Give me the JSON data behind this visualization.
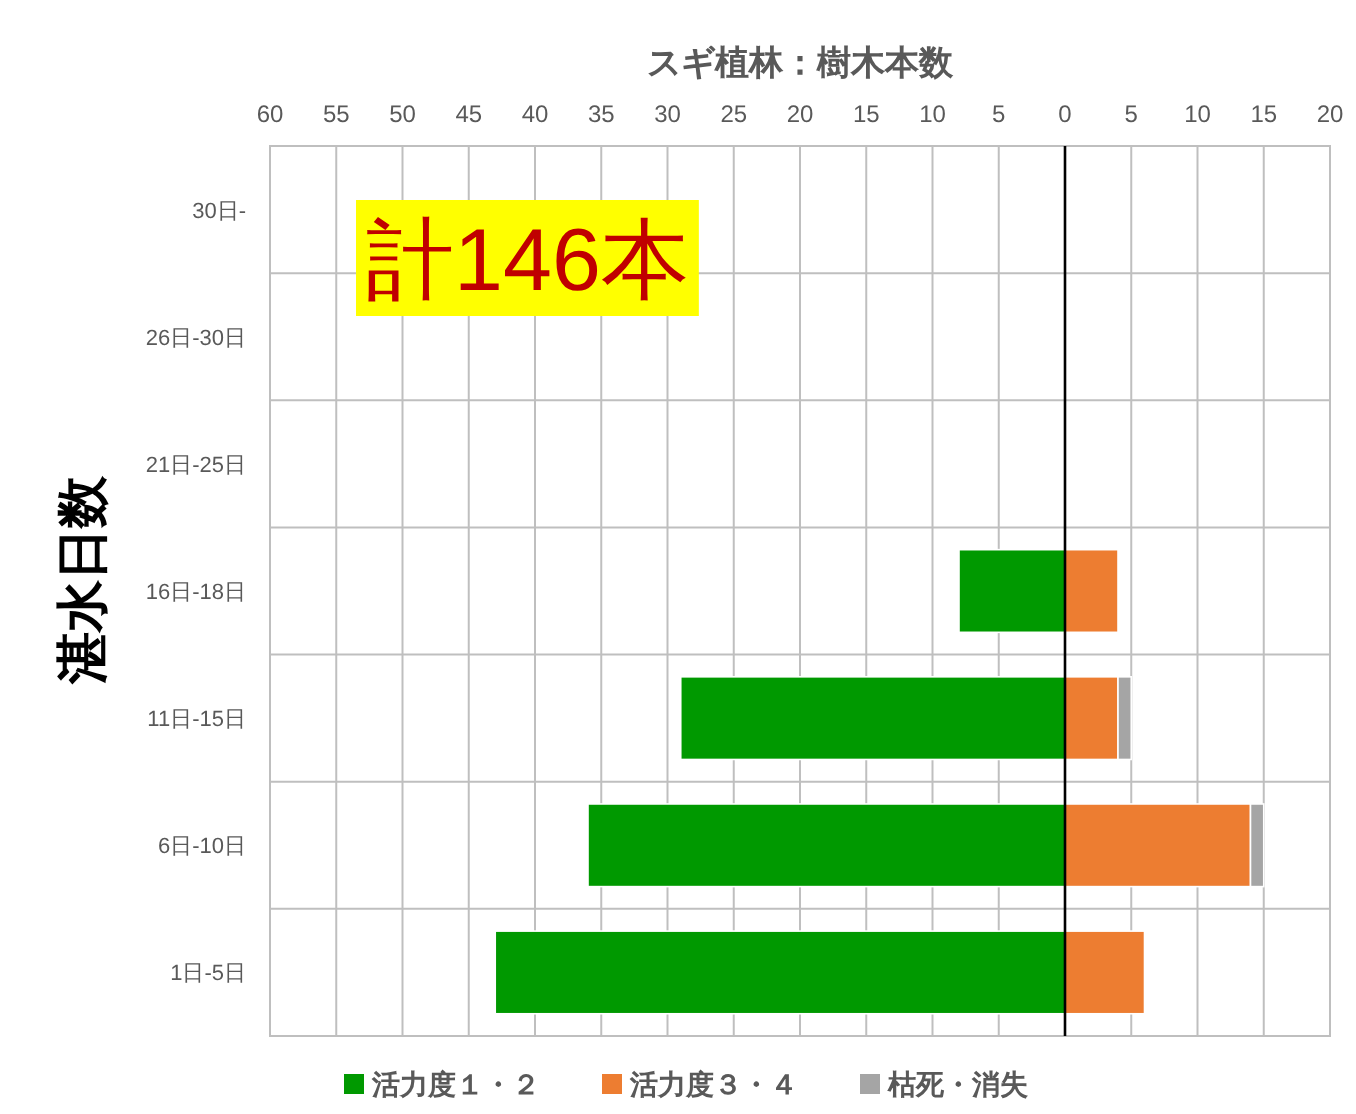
{
  "chart_data": {
    "type": "bar",
    "orientation": "horizontal",
    "stacked": true,
    "title": "スギ植林：樹木本数",
    "ylabel": "湛水日数",
    "categories": [
      "30日-",
      "26日-30日",
      "21日-25日",
      "16日-18日",
      "11日-15日",
      "6日-10日",
      "1日-5日"
    ],
    "series": [
      {
        "name": "活力度１・２",
        "color": "#009900",
        "values": [
          null,
          null,
          null,
          -8,
          -29,
          -36,
          -43
        ]
      },
      {
        "name": "活力度３・４",
        "color": "#ed7d31",
        "values": [
          null,
          null,
          null,
          4,
          4,
          14,
          6
        ]
      },
      {
        "name": "枯死・消失",
        "color": "#a5a5a5",
        "values": [
          null,
          null,
          null,
          null,
          1,
          1,
          null
        ]
      }
    ],
    "xlim": [
      -60,
      20
    ],
    "xticks": [
      {
        "value": -60,
        "label": "60"
      },
      {
        "value": -55,
        "label": "55"
      },
      {
        "value": -50,
        "label": "50"
      },
      {
        "value": -45,
        "label": "45"
      },
      {
        "value": -40,
        "label": "40"
      },
      {
        "value": -35,
        "label": "35"
      },
      {
        "value": -30,
        "label": "30"
      },
      {
        "value": -25,
        "label": "25"
      },
      {
        "value": -20,
        "label": "20"
      },
      {
        "value": -15,
        "label": "15"
      },
      {
        "value": -10,
        "label": "10"
      },
      {
        "value": -5,
        "label": "5"
      },
      0,
      5,
      10,
      15,
      20
    ],
    "ref_lines": [
      {
        "axis": "x",
        "value": 0,
        "color": "#000000"
      }
    ],
    "annotations": [
      "計146本"
    ],
    "grid": true,
    "legend": "bottom"
  }
}
